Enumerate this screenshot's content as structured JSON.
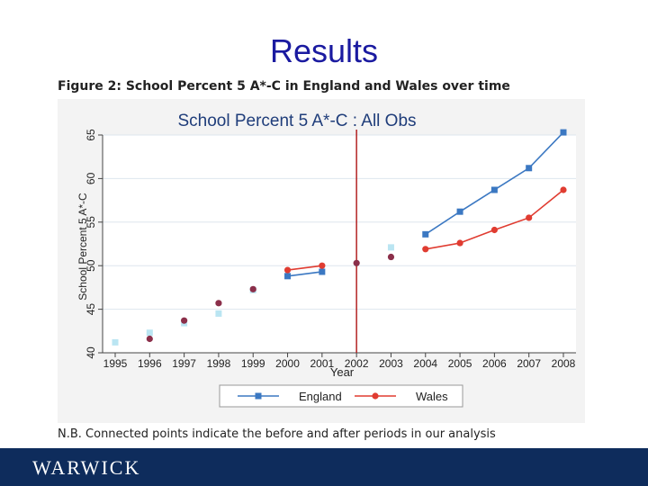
{
  "slide": {
    "title": "Results",
    "figure_caption": "Figure 2: School Percent 5 A*-C in England and Wales over time",
    "note": "N.B. Connected points indicate the before and after periods in our analysis",
    "footer_logo": "WARWICK"
  },
  "chart_data": {
    "type": "line",
    "title": "School Percent 5 A*-C : All Obs",
    "xlabel": "Year",
    "ylabel": "School Percent 5 A*-C",
    "x": [
      1995,
      1996,
      1997,
      1998,
      1999,
      2000,
      2001,
      2002,
      2003,
      2004,
      2005,
      2006,
      2007,
      2008
    ],
    "xlim": [
      1995,
      2008
    ],
    "ylim": [
      40,
      65
    ],
    "yticks": [
      40,
      45,
      50,
      55,
      60,
      65
    ],
    "grid": true,
    "legend_position": "bottom",
    "vertical_line": {
      "x": 2002,
      "color": "#b22222"
    },
    "series": [
      {
        "name": "England",
        "color": "#3b78c2",
        "marker": "square",
        "connected": [
          {
            "x": 2000,
            "y": 48.8
          },
          {
            "x": 2001,
            "y": 49.3
          }
        ],
        "connected_after": [
          {
            "x": 2004,
            "y": 53.6
          },
          {
            "x": 2005,
            "y": 56.2
          },
          {
            "x": 2006,
            "y": 58.7
          },
          {
            "x": 2007,
            "y": 61.2
          },
          {
            "x": 2008,
            "y": 65.3
          }
        ],
        "unconnected": [
          {
            "x": 1995,
            "y": 41.2
          },
          {
            "x": 1996,
            "y": 42.3
          },
          {
            "x": 1997,
            "y": 43.4
          },
          {
            "x": 1998,
            "y": 44.5
          },
          {
            "x": 1999,
            "y": 47.2
          },
          {
            "x": 2003,
            "y": 52.1
          }
        ]
      },
      {
        "name": "Wales",
        "color": "#e03c31",
        "marker": "circle",
        "connected": [
          {
            "x": 2000,
            "y": 49.5
          },
          {
            "x": 2001,
            "y": 50.0
          }
        ],
        "connected_after": [
          {
            "x": 2004,
            "y": 51.9
          },
          {
            "x": 2005,
            "y": 52.6
          },
          {
            "x": 2006,
            "y": 54.1
          },
          {
            "x": 2007,
            "y": 55.5
          },
          {
            "x": 2008,
            "y": 58.7
          }
        ],
        "unconnected": [
          {
            "x": 1996,
            "y": 41.6
          },
          {
            "x": 1997,
            "y": 43.7
          },
          {
            "x": 1998,
            "y": 45.7
          },
          {
            "x": 1999,
            "y": 47.3
          },
          {
            "x": 2002,
            "y": 50.3
          },
          {
            "x": 2003,
            "y": 51.0
          }
        ],
        "unconnected_color": "#8b2f4a"
      }
    ]
  }
}
